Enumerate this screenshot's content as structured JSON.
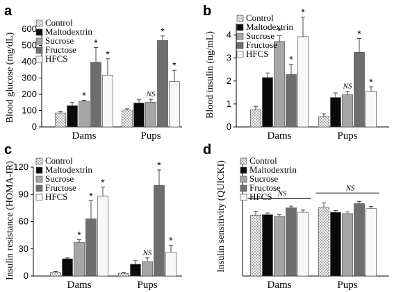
{
  "categories": [
    "Control",
    "Maltodextrin",
    "Sucrose",
    "Fructose",
    "HFCS"
  ],
  "series_colors": {
    "Control": "dotted",
    "Maltodextrin": "#0a0a0a",
    "Sucrose": "#a6a6a6",
    "Fructose": "#6e6e6e",
    "HFCS": "#f7f7f7"
  },
  "chart_data": [
    {
      "panel": "a",
      "type": "bar",
      "ylabel": "Blood glucose (mg/dL)",
      "ylim": [
        0,
        600
      ],
      "yticks": [
        0,
        100,
        200,
        300,
        400,
        500,
        600
      ],
      "groups": [
        "Dams",
        "Pups"
      ],
      "series": [
        {
          "name": "Control",
          "values": [
            85,
            103
          ],
          "errors": [
            10,
            8
          ]
        },
        {
          "name": "Maltodextrin",
          "values": [
            130,
            147
          ],
          "errors": [
            20,
            20
          ]
        },
        {
          "name": "Sucrose",
          "values": [
            158,
            152
          ],
          "errors": [
            6,
            18
          ]
        },
        {
          "name": "Fructose",
          "values": [
            397,
            530
          ],
          "errors": [
            90,
            28
          ]
        },
        {
          "name": "HFCS",
          "values": [
            318,
            278
          ],
          "errors": [
            100,
            70
          ]
        }
      ],
      "annotations": [
        {
          "group": "Dams",
          "series": "Sucrose",
          "text": "*"
        },
        {
          "group": "Dams",
          "series": "Fructose",
          "text": "*"
        },
        {
          "group": "Dams",
          "series": "HFCS",
          "text": "*"
        },
        {
          "group": "Pups",
          "series": "Sucrose",
          "text": "NS"
        },
        {
          "group": "Pups",
          "series": "Fructose",
          "text": "*"
        },
        {
          "group": "Pups",
          "series": "HFCS",
          "text": "*"
        }
      ]
    },
    {
      "panel": "b",
      "type": "bar",
      "ylabel": "Blood insulin (ng/mL)",
      "ylim": [
        0,
        4.5
      ],
      "yticks": [
        0,
        1,
        2,
        3,
        4
      ],
      "groups": [
        "Dams",
        "Pups"
      ],
      "series": [
        {
          "name": "Control",
          "values": [
            0.75,
            0.45
          ],
          "errors": [
            0.15,
            0.12
          ]
        },
        {
          "name": "Maltodextrin",
          "values": [
            2.15,
            1.28
          ],
          "errors": [
            0.2,
            0.2
          ]
        },
        {
          "name": "Sucrose",
          "values": [
            3.72,
            1.4
          ],
          "errors": [
            0.25,
            0.15
          ]
        },
        {
          "name": "Fructose",
          "values": [
            2.28,
            3.25
          ],
          "errors": [
            0.45,
            0.6
          ]
        },
        {
          "name": "HFCS",
          "values": [
            3.93,
            1.55
          ],
          "errors": [
            0.85,
            0.2
          ]
        }
      ],
      "annotations": [
        {
          "group": "Dams",
          "series": "Sucrose",
          "text": "*"
        },
        {
          "group": "Dams",
          "series": "Fructose",
          "text": "*"
        },
        {
          "group": "Dams",
          "series": "HFCS",
          "text": "*"
        },
        {
          "group": "Pups",
          "series": "Sucrose",
          "text": "NS"
        },
        {
          "group": "Pups",
          "series": "Fructose",
          "text": "*"
        },
        {
          "group": "Pups",
          "series": "HFCS",
          "text": "*"
        }
      ]
    },
    {
      "panel": "c",
      "type": "bar",
      "ylabel": "Insulin resistance (HOMA-IR)",
      "ylim": [
        0,
        120
      ],
      "yticks": [
        0,
        30,
        60,
        90,
        120
      ],
      "groups": [
        "Dams",
        "Pups"
      ],
      "series": [
        {
          "name": "Control",
          "values": [
            4,
            3
          ],
          "errors": [
            1,
            1
          ]
        },
        {
          "name": "Maltodextrin",
          "values": [
            19,
            13
          ],
          "errors": [
            1,
            4
          ]
        },
        {
          "name": "Sucrose",
          "values": [
            37,
            16
          ],
          "errors": [
            3,
            4
          ]
        },
        {
          "name": "Fructose",
          "values": [
            63,
            100
          ],
          "errors": [
            20,
            17
          ]
        },
        {
          "name": "HFCS",
          "values": [
            88,
            26
          ],
          "errors": [
            10,
            8
          ]
        }
      ],
      "annotations": [
        {
          "group": "Dams",
          "series": "Sucrose",
          "text": "*"
        },
        {
          "group": "Dams",
          "series": "Fructose",
          "text": "*"
        },
        {
          "group": "Dams",
          "series": "HFCS",
          "text": "*"
        },
        {
          "group": "Pups",
          "series": "Sucrose",
          "text": "NS"
        },
        {
          "group": "Pups",
          "series": "Fructose",
          "text": "*"
        },
        {
          "group": "Pups",
          "series": "HFCS",
          "text": "*"
        }
      ]
    },
    {
      "panel": "d",
      "type": "bar",
      "ylabel": "Insulin sensitivity (QUICKI)",
      "ylim": [
        0,
        5.2
      ],
      "yticks": [],
      "groups": [
        "Dams",
        "Pups"
      ],
      "series": [
        {
          "name": "Control",
          "values": [
            2.75,
            3.1
          ],
          "errors": [
            0.18,
            0.2
          ]
        },
        {
          "name": "Maltodextrin",
          "values": [
            2.77,
            2.88
          ],
          "errors": [
            0.08,
            0.08
          ]
        },
        {
          "name": "Sucrose",
          "values": [
            2.7,
            2.82
          ],
          "errors": [
            0.08,
            0.08
          ]
        },
        {
          "name": "Fructose",
          "values": [
            3.08,
            3.27
          ],
          "errors": [
            0.08,
            0.1
          ]
        },
        {
          "name": "HFCS",
          "values": [
            2.88,
            3.05
          ],
          "errors": [
            0.1,
            0.1
          ]
        }
      ],
      "brackets": [
        {
          "group": "Dams",
          "text": "NS",
          "level": 3.5
        },
        {
          "group": "Pups",
          "text": "NS",
          "level": 3.75
        }
      ]
    }
  ]
}
